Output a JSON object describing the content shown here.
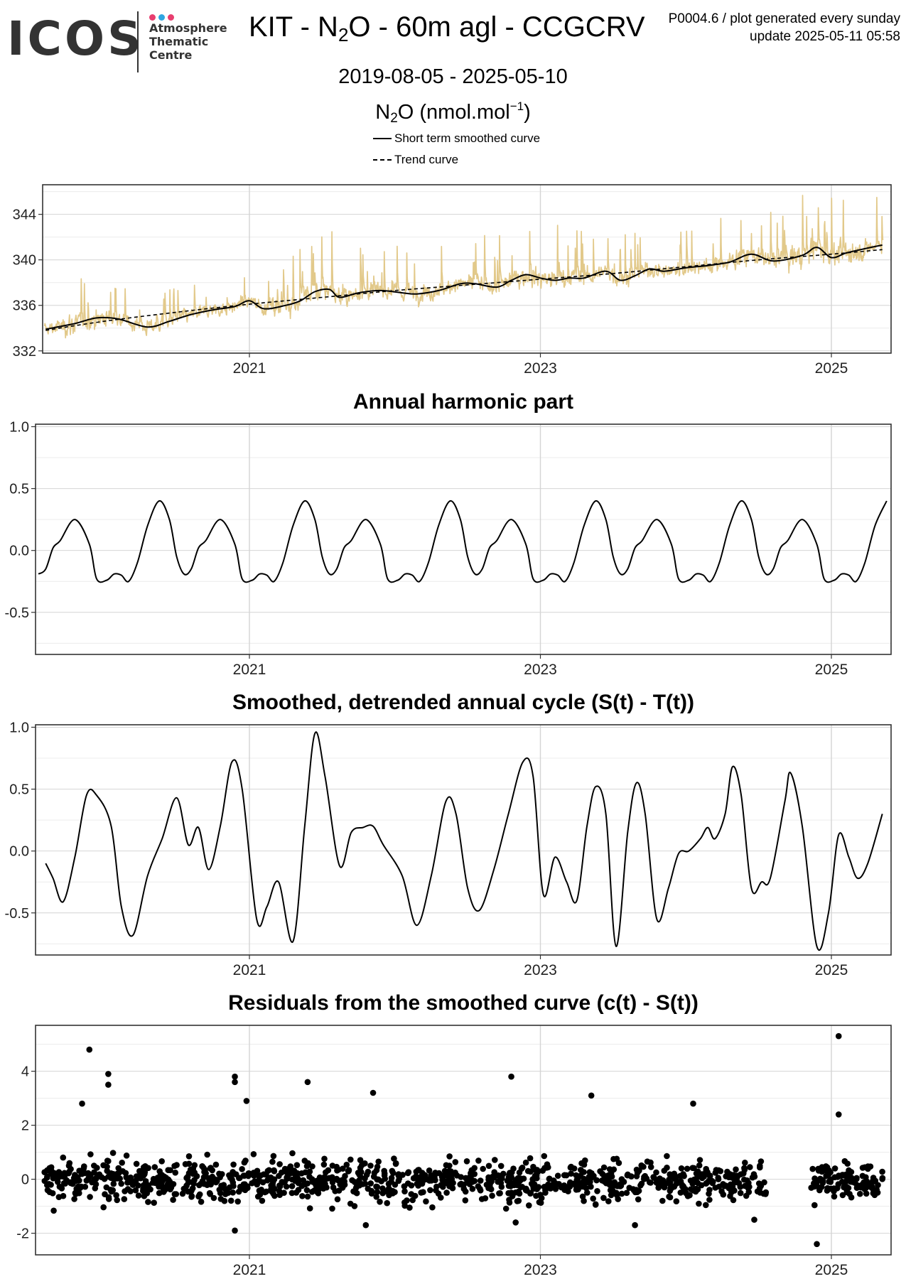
{
  "header": {
    "logo_text": "ICOS",
    "logo_lines": [
      "Atmosphere",
      "Thematic",
      "Centre"
    ],
    "logo_dot_colors": [
      "#e83e6f",
      "#2fa6e2",
      "#e83e6f"
    ],
    "title_prefix": "KIT - N",
    "title_sub": "2",
    "title_suffix": "O - 60m agl - CCGCRV",
    "meta_line1": "P0004.6 / plot generated every sunday",
    "meta_line2": "update  2025-05-11 05:58",
    "date_range": "2019-08-05 - 2025-05-10",
    "unit_prefix": "N",
    "unit_sub": "2",
    "unit_mid": "O (nmol.mol",
    "unit_sup": "−1",
    "unit_suffix": ")"
  },
  "legend": [
    {
      "label": "Short term smoothed curve",
      "style": "solid"
    },
    {
      "label": "Trend curve",
      "style": "dashed"
    }
  ],
  "colors": {
    "raw": "#e2c98a",
    "line": "#000000",
    "grid_major": "#d4d4d4",
    "grid_minor": "#ececec",
    "frame": "#333333"
  },
  "chart_data": [
    {
      "type": "line",
      "title": "",
      "x_start": "2019-08-05",
      "x_end": "2025-05-10",
      "xticks": [
        {
          "x": "2021-01-01",
          "label": "2021"
        },
        {
          "x": "2023-01-01",
          "label": "2023"
        },
        {
          "x": "2025-01-01",
          "label": "2025"
        }
      ],
      "ylim": [
        331.8,
        346.6
      ],
      "yticks": [
        {
          "y": 332,
          "label": "332"
        },
        {
          "y": 336,
          "label": "336"
        },
        {
          "y": 340,
          "label": "340"
        },
        {
          "y": 344,
          "label": "344"
        }
      ],
      "series": [
        {
          "kind": "raw",
          "trend": [
            [
              2019.6,
              333.8
            ],
            [
              2025.35,
              340.9
            ]
          ],
          "amp": [
            [
              2019.6,
              1.0
            ],
            [
              2019.8,
              2.2
            ],
            [
              2020.1,
              1.4
            ],
            [
              2021.0,
              1.2
            ],
            [
              2021.4,
              2.2
            ],
            [
              2021.8,
              1.6
            ],
            [
              2022.5,
              1.4
            ],
            [
              2022.9,
              2.2
            ],
            [
              2023.4,
              1.6
            ],
            [
              2023.8,
              1.4
            ],
            [
              2024.3,
              1.6
            ],
            [
              2024.9,
              2.2
            ],
            [
              2025.1,
              2.4
            ],
            [
              2025.35,
              1.4
            ]
          ],
          "note": "daily observations"
        },
        {
          "name": "Short term smoothed curve",
          "kind": "smooth",
          "style": "solid",
          "points": [
            [
              2019.6,
              333.9
            ],
            [
              2019.8,
              334.4
            ],
            [
              2019.95,
              334.9
            ],
            [
              2020.1,
              334.8
            ],
            [
              2020.3,
              334.1
            ],
            [
              2020.45,
              334.6
            ],
            [
              2020.6,
              335.2
            ],
            [
              2020.75,
              335.6
            ],
            [
              2020.9,
              335.9
            ],
            [
              2021.0,
              336.4
            ],
            [
              2021.1,
              335.7
            ],
            [
              2021.25,
              336.0
            ],
            [
              2021.35,
              336.4
            ],
            [
              2021.45,
              337.2
            ],
            [
              2021.55,
              337.4
            ],
            [
              2021.62,
              336.7
            ],
            [
              2021.75,
              337.1
            ],
            [
              2021.9,
              337.3
            ],
            [
              2022.05,
              337.1
            ],
            [
              2022.15,
              337.0
            ],
            [
              2022.3,
              337.3
            ],
            [
              2022.45,
              337.9
            ],
            [
              2022.55,
              337.9
            ],
            [
              2022.7,
              337.6
            ],
            [
              2022.8,
              338.2
            ],
            [
              2022.9,
              338.7
            ],
            [
              2023.0,
              338.4
            ],
            [
              2023.1,
              338.2
            ],
            [
              2023.2,
              338.4
            ],
            [
              2023.3,
              338.4
            ],
            [
              2023.45,
              339.0
            ],
            [
              2023.55,
              338.2
            ],
            [
              2023.65,
              338.6
            ],
            [
              2023.75,
              339.2
            ],
            [
              2023.85,
              339.0
            ],
            [
              2024.0,
              339.3
            ],
            [
              2024.15,
              339.5
            ],
            [
              2024.3,
              339.8
            ],
            [
              2024.45,
              340.5
            ],
            [
              2024.6,
              339.9
            ],
            [
              2024.8,
              340.4
            ],
            [
              2024.9,
              341.1
            ],
            [
              2025.0,
              340.2
            ],
            [
              2025.1,
              340.6
            ],
            [
              2025.2,
              340.9
            ],
            [
              2025.35,
              341.3
            ]
          ]
        },
        {
          "name": "Trend curve",
          "kind": "trend",
          "style": "dashed",
          "points": [
            [
              2019.6,
              333.8
            ],
            [
              2020.0,
              334.6
            ],
            [
              2020.5,
              335.4
            ],
            [
              2021.0,
              336.1
            ],
            [
              2021.5,
              336.7
            ],
            [
              2022.0,
              337.3
            ],
            [
              2022.5,
              337.8
            ],
            [
              2023.0,
              338.3
            ],
            [
              2023.5,
              338.8
            ],
            [
              2024.0,
              339.4
            ],
            [
              2024.5,
              340.0
            ],
            [
              2025.0,
              340.5
            ],
            [
              2025.35,
              340.9
            ]
          ]
        }
      ]
    },
    {
      "type": "line",
      "title": "Annual harmonic part",
      "x_start": "2019-08-05",
      "x_end": "2025-05-10",
      "xticks": [
        {
          "x": "2021-01-01",
          "label": "2021"
        },
        {
          "x": "2023-01-01",
          "label": "2023"
        },
        {
          "x": "2025-01-01",
          "label": "2025"
        }
      ],
      "ylim": [
        -0.84,
        1.02
      ],
      "yticks": [
        {
          "y": -0.5,
          "label": "-0.5"
        },
        {
          "y": 0.0,
          "label": "0.0"
        },
        {
          "y": 0.5,
          "label": "0.5"
        },
        {
          "y": 1.0,
          "label": "1.0"
        }
      ],
      "series": [
        {
          "kind": "periodic",
          "period_start": 2019.6,
          "cycle": [
            [
              0.0,
              -0.15
            ],
            [
              0.05,
              0.02
            ],
            [
              0.1,
              0.08
            ],
            [
              0.2,
              0.25
            ],
            [
              0.3,
              0.05
            ],
            [
              0.35,
              -0.23
            ],
            [
              0.42,
              -0.24
            ],
            [
              0.47,
              -0.19
            ],
            [
              0.52,
              -0.2
            ],
            [
              0.57,
              -0.25
            ],
            [
              0.63,
              -0.1
            ],
            [
              0.7,
              0.2
            ],
            [
              0.78,
              0.4
            ],
            [
              0.85,
              0.25
            ],
            [
              0.9,
              -0.05
            ],
            [
              0.95,
              -0.19
            ],
            [
              1.0,
              -0.15
            ]
          ]
        }
      ]
    },
    {
      "type": "line",
      "title": "Smoothed, detrended annual cycle (S(t) - T(t))",
      "x_start": "2019-08-05",
      "x_end": "2025-05-10",
      "xticks": [
        {
          "x": "2021-01-01",
          "label": "2021"
        },
        {
          "x": "2023-01-01",
          "label": "2023"
        },
        {
          "x": "2025-01-01",
          "label": "2025"
        }
      ],
      "ylim": [
        -0.84,
        1.02
      ],
      "yticks": [
        {
          "y": -0.5,
          "label": "-0.5"
        },
        {
          "y": 0.0,
          "label": "0.0"
        },
        {
          "y": 0.5,
          "label": "0.5"
        },
        {
          "y": 1.0,
          "label": "1.0"
        }
      ],
      "series": [
        {
          "kind": "smooth",
          "points": [
            [
              2019.6,
              -0.1
            ],
            [
              2019.65,
              -0.22
            ],
            [
              2019.72,
              -0.41
            ],
            [
              2019.8,
              -0.05
            ],
            [
              2019.88,
              0.45
            ],
            [
              2019.95,
              0.45
            ],
            [
              2020.05,
              0.2
            ],
            [
              2020.12,
              -0.45
            ],
            [
              2020.2,
              -0.68
            ],
            [
              2020.3,
              -0.2
            ],
            [
              2020.4,
              0.1
            ],
            [
              2020.5,
              0.43
            ],
            [
              2020.58,
              0.05
            ],
            [
              2020.65,
              0.19
            ],
            [
              2020.72,
              -0.15
            ],
            [
              2020.8,
              0.2
            ],
            [
              2020.88,
              0.72
            ],
            [
              2020.95,
              0.5
            ],
            [
              2021.05,
              -0.55
            ],
            [
              2021.12,
              -0.45
            ],
            [
              2021.2,
              -0.25
            ],
            [
              2021.3,
              -0.73
            ],
            [
              2021.38,
              0.2
            ],
            [
              2021.45,
              0.95
            ],
            [
              2021.52,
              0.6
            ],
            [
              2021.62,
              -0.12
            ],
            [
              2021.7,
              0.15
            ],
            [
              2021.78,
              0.19
            ],
            [
              2021.85,
              0.2
            ],
            [
              2021.92,
              0.05
            ],
            [
              2022.05,
              -0.2
            ],
            [
              2022.15,
              -0.6
            ],
            [
              2022.25,
              -0.2
            ],
            [
              2022.35,
              0.4
            ],
            [
              2022.42,
              0.3
            ],
            [
              2022.5,
              -0.3
            ],
            [
              2022.58,
              -0.48
            ],
            [
              2022.68,
              -0.15
            ],
            [
              2022.78,
              0.3
            ],
            [
              2022.88,
              0.72
            ],
            [
              2022.95,
              0.6
            ],
            [
              2023.02,
              -0.35
            ],
            [
              2023.1,
              -0.05
            ],
            [
              2023.18,
              -0.25
            ],
            [
              2023.25,
              -0.4
            ],
            [
              2023.32,
              0.2
            ],
            [
              2023.38,
              0.52
            ],
            [
              2023.45,
              0.3
            ],
            [
              2023.52,
              -0.77
            ],
            [
              2023.6,
              0.15
            ],
            [
              2023.66,
              0.55
            ],
            [
              2023.72,
              0.3
            ],
            [
              2023.8,
              -0.55
            ],
            [
              2023.88,
              -0.3
            ],
            [
              2023.95,
              -0.02
            ],
            [
              2024.02,
              0.0
            ],
            [
              2024.1,
              0.1
            ],
            [
              2024.15,
              0.19
            ],
            [
              2024.2,
              0.1
            ],
            [
              2024.27,
              0.3
            ],
            [
              2024.32,
              0.68
            ],
            [
              2024.38,
              0.45
            ],
            [
              2024.45,
              -0.3
            ],
            [
              2024.52,
              -0.25
            ],
            [
              2024.58,
              -0.22
            ],
            [
              2024.68,
              0.4
            ],
            [
              2024.72,
              0.63
            ],
            [
              2024.8,
              0.2
            ],
            [
              2024.9,
              -0.77
            ],
            [
              2024.98,
              -0.5
            ],
            [
              2025.05,
              0.13
            ],
            [
              2025.12,
              -0.05
            ],
            [
              2025.18,
              -0.22
            ],
            [
              2025.25,
              -0.1
            ],
            [
              2025.35,
              0.3
            ]
          ]
        }
      ]
    },
    {
      "type": "scatter",
      "title": "Residuals from the smoothed curve (c(t) - S(t))",
      "x_start": "2019-08-05",
      "x_end": "2025-05-10",
      "xticks": [
        {
          "x": "2021-01-01",
          "label": "2021"
        },
        {
          "x": "2023-01-01",
          "label": "2023"
        },
        {
          "x": "2025-01-01",
          "label": "2025"
        }
      ],
      "ylim": [
        -2.8,
        5.7
      ],
      "yticks": [
        {
          "y": -2,
          "label": "-2"
        },
        {
          "y": 0,
          "label": "0"
        },
        {
          "y": 2,
          "label": "2"
        },
        {
          "y": 4,
          "label": "4"
        }
      ],
      "gap": [
        2024.55,
        2024.86
      ],
      "outliers": [
        [
          2019.9,
          4.8
        ],
        [
          2020.03,
          3.9
        ],
        [
          2020.03,
          3.5
        ],
        [
          2019.85,
          2.8
        ],
        [
          2021.85,
          3.2
        ],
        [
          2022.8,
          3.8
        ],
        [
          2023.35,
          3.1
        ],
        [
          2024.05,
          2.8
        ],
        [
          2020.9,
          3.8
        ],
        [
          2020.9,
          3.6
        ],
        [
          2020.98,
          2.9
        ],
        [
          2021.4,
          3.6
        ],
        [
          2025.05,
          5.3
        ],
        [
          2025.05,
          2.4
        ],
        [
          2024.9,
          -2.4
        ],
        [
          2020.9,
          -1.9
        ],
        [
          2024.47,
          -1.5
        ],
        [
          2023.65,
          -1.7
        ],
        [
          2021.8,
          -1.7
        ],
        [
          2022.83,
          -1.6
        ]
      ]
    }
  ]
}
